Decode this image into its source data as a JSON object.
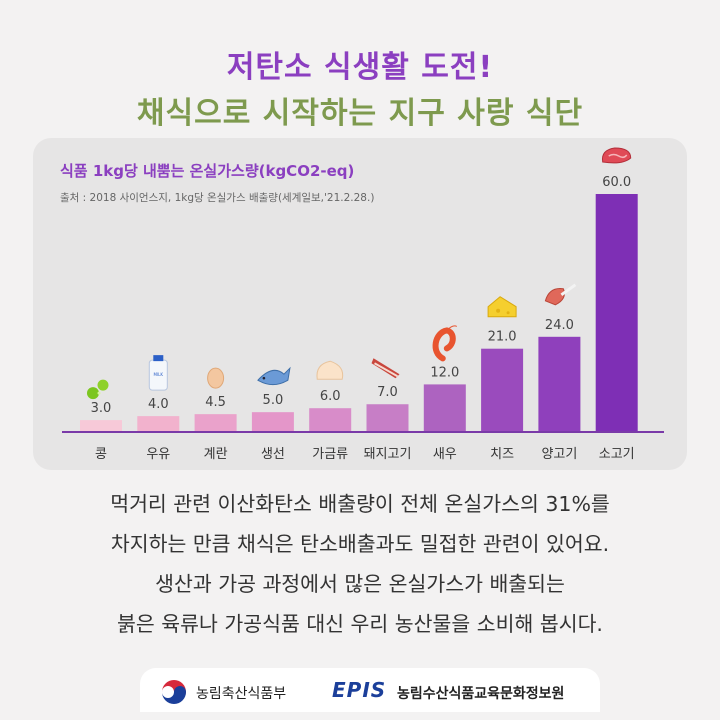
{
  "header": {
    "title_line1": "저탄소 식생활 도전!",
    "title_line2": "채식으로 시작하는 지구 사랑 식단"
  },
  "chart_data": {
    "type": "bar",
    "title": "식품 1kg당 내뿜는 온실가스량(kgCO2-eq)",
    "source": "출처 : 2018 사이언스지, 1kg당 온실가스 배출량(세계일보,'21.2.28.)",
    "categories": [
      "콩",
      "우유",
      "계란",
      "생선",
      "가금류",
      "돼지고기",
      "새우",
      "치즈",
      "양고기",
      "소고기"
    ],
    "values": [
      3.0,
      4.0,
      4.5,
      5.0,
      6.0,
      7.0,
      12.0,
      21.0,
      24.0,
      60.0
    ],
    "value_labels": [
      "3.0",
      "4.0",
      "4.5",
      "5.0",
      "6.0",
      "7.0",
      "12.0",
      "21.0",
      "24.0",
      "60.0"
    ],
    "ylim": [
      0,
      60
    ],
    "icons": [
      "soybean-icon",
      "milk-bottle-icon",
      "egg-icon",
      "fish-icon",
      "chicken-icon",
      "bacon-icon",
      "shrimp-icon",
      "cheese-icon",
      "lamb-chop-icon",
      "steak-icon"
    ],
    "milk_label": "MILK",
    "colors": [
      "#f7c9d8",
      "#f2b2cd",
      "#eaa2cb",
      "#e496c9",
      "#d88cc9",
      "#c77ec6",
      "#ad63c0",
      "#9a4bbd",
      "#8f40bc",
      "#7e2fb5"
    ],
    "axis_color": "#7a3aa8"
  },
  "body": {
    "lines": [
      "먹거리 관련 이산화탄소 배출량이 전체 온실가스의 31%를",
      "차지하는 만큼 채식은 탄소배출과도 밀접한 관련이 있어요.",
      "생산과 가공 과정에서 많은 온실가스가 배출되는",
      "붉은 육류나 가공식품 대신 우리 농산물을 소비해 봅시다."
    ]
  },
  "footer": {
    "ministry": "농림축산식품부",
    "epis_logo": "EPIS",
    "agency": "농림수산식품교육문화정보원"
  }
}
